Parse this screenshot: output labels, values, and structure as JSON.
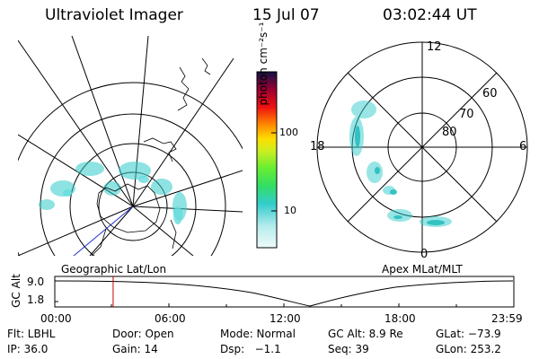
{
  "header": {
    "title": "Ultraviolet Imager",
    "date": "15 Jul 07",
    "time": "03:02:44 UT"
  },
  "colorbar": {
    "unit_label": "photon cm⁻²s⁻¹",
    "ticks": [
      "100",
      "10"
    ]
  },
  "maps": {
    "left_label": "Geographic Lat/Lon",
    "right_label": "Apex MLat/MLT",
    "mlt_labels": {
      "top": "12",
      "left": "18",
      "right": "6",
      "bottom": "0"
    },
    "mlat_labels": [
      "60",
      "70",
      "80"
    ]
  },
  "altitude_plot": {
    "ylabel": "GC Alt",
    "yticks": [
      "9.0",
      "1.8"
    ],
    "xticks": [
      "00:00",
      "06:00",
      "12:00",
      "18:00",
      "23:59"
    ],
    "marker_color": "#cc0000",
    "marker_time_hours": 3.05
  },
  "info": {
    "row1": [
      "Flt: LBHL",
      "Door: Open",
      "Mode: Normal",
      "GC Alt: 8.9 Re",
      "GLat: −73.9"
    ],
    "row2": [
      "IP: 36.0",
      "Gain: 14",
      "Dsp:   −1.1",
      "Seq: 39",
      "GLon: 253.2"
    ]
  },
  "colors": {
    "aurora": "#33cccc",
    "text": "#000000"
  }
}
